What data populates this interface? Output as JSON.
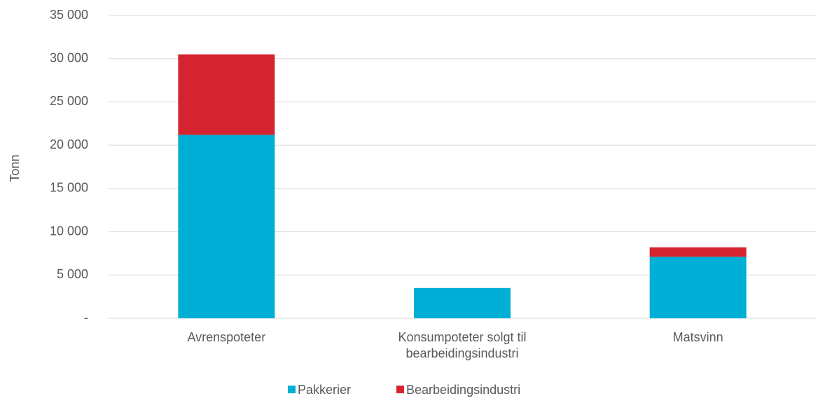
{
  "chart_data": {
    "type": "stacked_bar",
    "categories": [
      "Avrenspoteter",
      "Konsumpoteter solgt til bearbeidingsindustri",
      "Matsvinn"
    ],
    "series": [
      {
        "name": "Pakkerier",
        "color": "#00afd6",
        "values": [
          21200,
          3500,
          7100
        ]
      },
      {
        "name": "Bearbeidingsindustri",
        "color": "#d52430",
        "values": [
          9300,
          0,
          1100
        ]
      }
    ],
    "y_label": "Tonn",
    "ylim": [
      0,
      35000
    ],
    "yticks": [
      {
        "value": 0,
        "label": "-"
      },
      {
        "value": 5000,
        "label": "5 000"
      },
      {
        "value": 10000,
        "label": "10 000"
      },
      {
        "value": 15000,
        "label": "15 000"
      },
      {
        "value": 20000,
        "label": "20 000"
      },
      {
        "value": 25000,
        "label": "25 000"
      },
      {
        "value": 30000,
        "label": "30 000"
      },
      {
        "value": 35000,
        "label": "35 000"
      }
    ],
    "grid": true,
    "legend": "bottom"
  }
}
